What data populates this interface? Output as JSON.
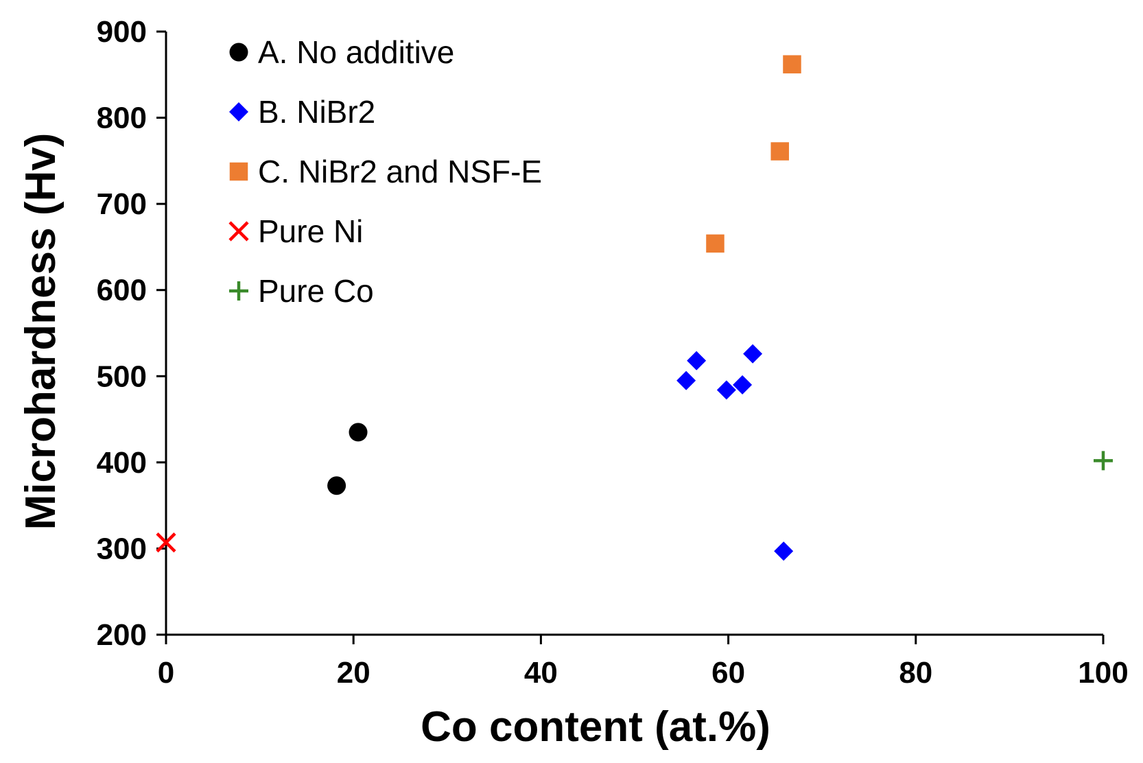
{
  "chart_data": {
    "type": "scatter",
    "title": "",
    "xlabel": "Co content (at.%)",
    "ylabel": "Microhardness (Hv)",
    "xlim": [
      0,
      100
    ],
    "ylim": [
      200,
      900
    ],
    "xticks": [
      0,
      20,
      40,
      60,
      80,
      100
    ],
    "yticks": [
      200,
      300,
      400,
      500,
      600,
      700,
      800,
      900
    ],
    "grid": false,
    "legend_position": "top-left",
    "series": [
      {
        "name": "A. No additive",
        "marker": "circle",
        "color": "#000000",
        "points": [
          {
            "x": 18.2,
            "y": 373
          },
          {
            "x": 20.5,
            "y": 435
          }
        ]
      },
      {
        "name": "B. NiBr2",
        "marker": "diamond",
        "color": "#0000ff",
        "points": [
          {
            "x": 55.5,
            "y": 495
          },
          {
            "x": 56.6,
            "y": 518
          },
          {
            "x": 59.8,
            "y": 484
          },
          {
            "x": 61.5,
            "y": 490
          },
          {
            "x": 62.6,
            "y": 526
          },
          {
            "x": 65.9,
            "y": 297
          }
        ]
      },
      {
        "name": "C. NiBr2 and NSF-E",
        "marker": "square",
        "color": "#ed7d31",
        "points": [
          {
            "x": 58.6,
            "y": 654
          },
          {
            "x": 65.5,
            "y": 761
          },
          {
            "x": 66.8,
            "y": 862
          }
        ]
      },
      {
        "name": "Pure Ni",
        "marker": "x",
        "color": "#ff0000",
        "points": [
          {
            "x": 0,
            "y": 307
          }
        ]
      },
      {
        "name": "Pure Co",
        "marker": "plus",
        "color": "#3a8a2a",
        "points": [
          {
            "x": 100,
            "y": 402
          }
        ]
      }
    ]
  }
}
